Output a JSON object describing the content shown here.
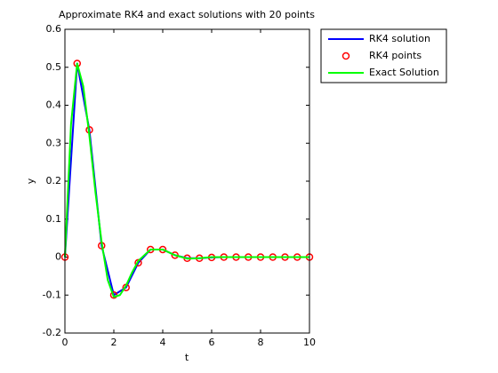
{
  "chart_data": {
    "type": "line",
    "title": "Approximate RK4 and exact solutions with 20 points",
    "x_label": "t",
    "y_label": "y",
    "xlim": [
      0,
      10
    ],
    "xticks": [
      0,
      2,
      4,
      6,
      8,
      10
    ],
    "ylim": [
      -0.2,
      0.6
    ],
    "yticks": [
      -0.2,
      -0.1,
      0,
      0.1,
      0.2,
      0.3,
      0.4,
      0.5,
      0.6
    ],
    "legend": "outside-top-right",
    "series": [
      {
        "name": "RK4 solution",
        "color": "#0000ff",
        "line": true,
        "marker": null,
        "x": [
          0,
          0.5,
          1,
          1.5,
          2,
          2.5,
          3,
          3.5,
          4,
          4.5,
          5,
          5.5,
          6,
          6.5,
          7,
          7.5,
          8,
          8.5,
          9,
          9.5,
          10
        ],
        "values": [
          0,
          0.51,
          0.335,
          0.03,
          -0.1,
          -0.08,
          -0.015,
          0.02,
          0.02,
          0.005,
          -0.003,
          -0.003,
          -0.001,
          0,
          0,
          0,
          0,
          0,
          0,
          0,
          0
        ]
      },
      {
        "name": "RK4 points",
        "color": "#ff0000",
        "line": false,
        "marker": "o",
        "x": [
          0,
          0.5,
          1,
          1.5,
          2,
          2.5,
          3,
          3.5,
          4,
          4.5,
          5,
          5.5,
          6,
          6.5,
          7,
          7.5,
          8,
          8.5,
          9,
          9.5,
          10
        ],
        "values": [
          0,
          0.51,
          0.335,
          0.03,
          -0.1,
          -0.08,
          -0.015,
          0.02,
          0.02,
          0.005,
          -0.003,
          -0.003,
          -0.001,
          0,
          0,
          0,
          0,
          0,
          0,
          0,
          0
        ]
      },
      {
        "name": "Exact Solution",
        "color": "#00ff00",
        "line": true,
        "marker": null,
        "x": [
          0,
          0.25,
          0.5,
          0.75,
          1,
          1.25,
          1.5,
          1.75,
          2,
          2.25,
          2.5,
          2.75,
          3,
          3.5,
          4,
          4.5,
          5,
          5.5,
          6,
          7,
          8,
          9,
          10
        ],
        "values": [
          0,
          0.35,
          0.51,
          0.45,
          0.32,
          0.17,
          0.04,
          -0.06,
          -0.105,
          -0.1,
          -0.075,
          -0.04,
          -0.01,
          0.02,
          0.02,
          0.005,
          -0.004,
          -0.003,
          0,
          0,
          0,
          0,
          0
        ]
      }
    ]
  }
}
